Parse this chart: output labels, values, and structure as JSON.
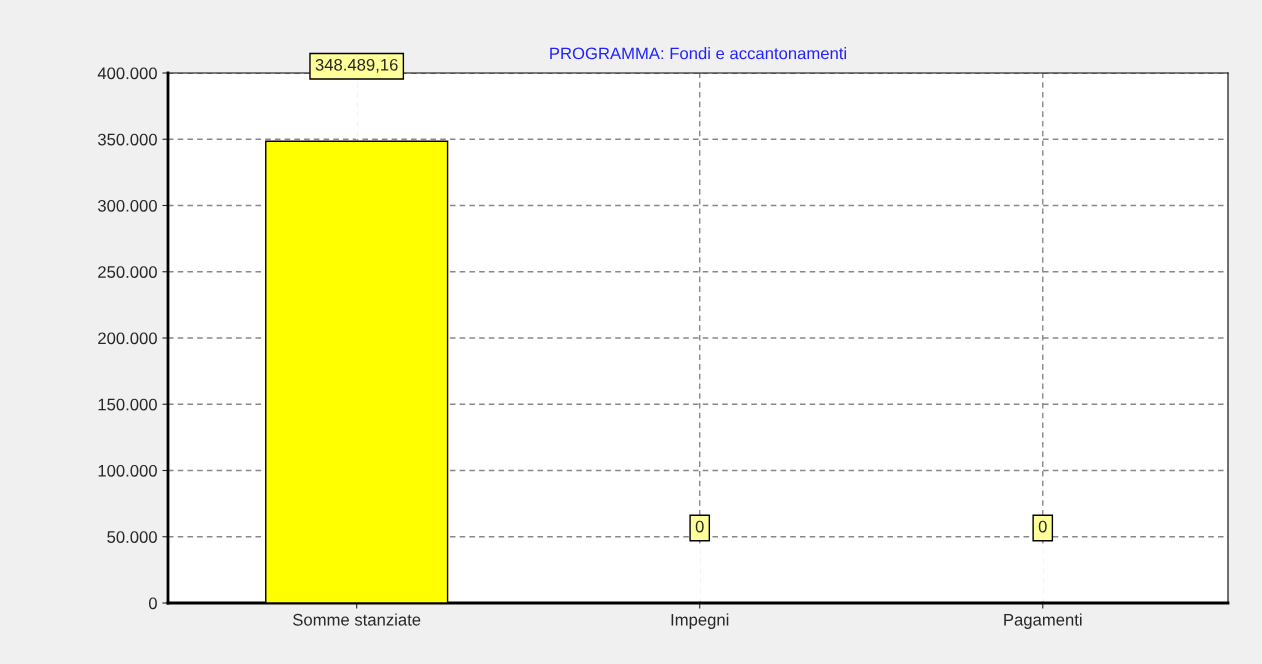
{
  "chart_data": {
    "type": "bar",
    "title": "PROGRAMMA: Fondi e accantonamenti",
    "categories": [
      "Somme stanziate",
      "Impegni",
      "Pagamenti"
    ],
    "values": [
      348489.16,
      0,
      0
    ],
    "value_labels": [
      "348.489,16",
      "0",
      "0"
    ],
    "color": "#ffff00",
    "ylim": [
      0,
      400000
    ],
    "yticks": [
      {
        "value": 0,
        "label": "0"
      },
      {
        "value": 50000,
        "label": "50.000"
      },
      {
        "value": 100000,
        "label": "100.000"
      },
      {
        "value": 150000,
        "label": "150.000"
      },
      {
        "value": 200000,
        "label": "200.000"
      },
      {
        "value": 250000,
        "label": "250.000"
      },
      {
        "value": 300000,
        "label": "300.000"
      },
      {
        "value": 350000,
        "label": "350.000"
      },
      {
        "value": 400000,
        "label": "400.000"
      }
    ],
    "grid": true
  }
}
